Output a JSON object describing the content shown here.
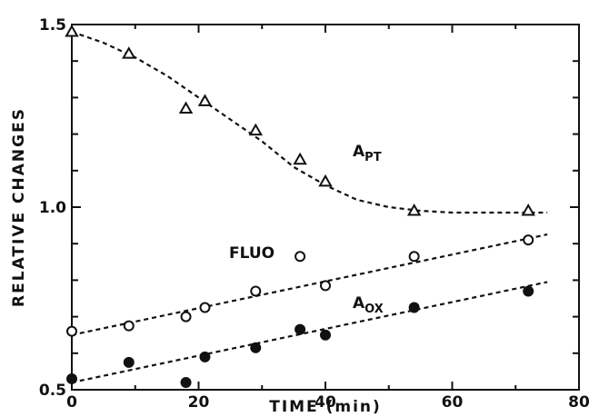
{
  "chart_data": {
    "type": "scatter",
    "xlabel": "TIME (min)",
    "ylabel": "RELATIVE CHANGES",
    "xlim": [
      0,
      80
    ],
    "ylim": [
      0.5,
      1.5
    ],
    "x_ticks": [
      0,
      20,
      40,
      60,
      80
    ],
    "x_tick_labels": [
      "0",
      "20",
      "40",
      "60",
      "80"
    ],
    "y_ticks": [
      0.5,
      1.0,
      1.5
    ],
    "y_tick_labels": [
      "0.5",
      "1.0",
      "1.5"
    ],
    "grid": false,
    "series": [
      {
        "name": "A",
        "subscript": "PT",
        "marker": "open-triangle",
        "x": [
          0,
          9,
          18,
          21,
          29,
          36,
          40,
          54,
          72
        ],
        "y": [
          1.48,
          1.42,
          1.27,
          1.29,
          1.21,
          1.13,
          1.07,
          0.99,
          0.99
        ],
        "fit": {
          "x": [
            0,
            5,
            10,
            15,
            20,
            25,
            30,
            35,
            40,
            45,
            50,
            55,
            60,
            65,
            70,
            75
          ],
          "y": [
            1.48,
            1.45,
            1.41,
            1.36,
            1.3,
            1.24,
            1.18,
            1.11,
            1.06,
            1.02,
            1.0,
            0.99,
            0.985,
            0.985,
            0.985,
            0.985
          ]
        }
      },
      {
        "name": "FLUO",
        "subscript": "",
        "marker": "open-circle",
        "x": [
          0,
          9,
          18,
          21,
          29,
          36,
          40,
          54,
          72
        ],
        "y": [
          0.66,
          0.675,
          0.7,
          0.725,
          0.77,
          0.865,
          0.785,
          0.865,
          0.91
        ],
        "fit": {
          "x": [
            0,
            75
          ],
          "y": [
            0.65,
            0.925
          ]
        }
      },
      {
        "name": "A",
        "subscript": "OX",
        "marker": "filled-circle",
        "x": [
          0,
          9,
          18,
          21,
          29,
          36,
          40,
          54,
          72
        ],
        "y": [
          0.53,
          0.575,
          0.52,
          0.59,
          0.615,
          0.665,
          0.65,
          0.725,
          0.77
        ],
        "fit": {
          "x": [
            0,
            75
          ],
          "y": [
            0.52,
            0.795
          ]
        }
      }
    ],
    "colors": {
      "ink": "#111111",
      "background": "#ffffff"
    }
  }
}
